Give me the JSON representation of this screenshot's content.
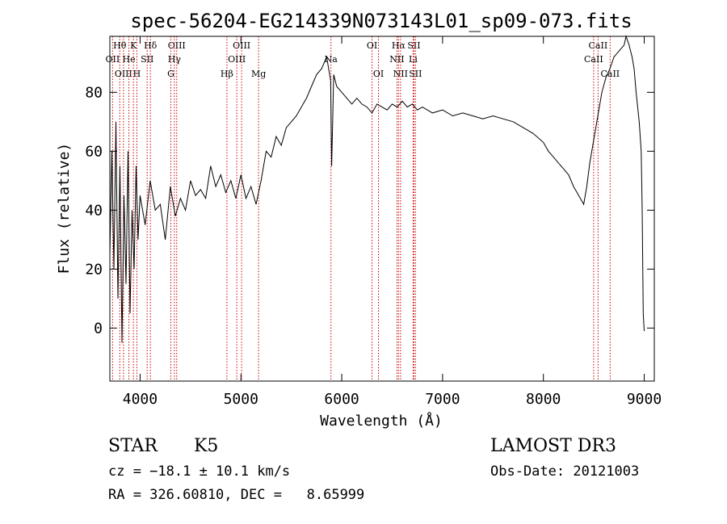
{
  "chart_data": {
    "type": "line",
    "title": "spec-56204-EG214339N073143L01_sp09-073.fits",
    "xlabel": "Wavelength (Å)",
    "ylabel": "Flux (relative)",
    "xlim": [
      3700,
      9100
    ],
    "ylim": [
      -18,
      99
    ],
    "x_ticks": [
      4000,
      5000,
      6000,
      7000,
      8000,
      9000
    ],
    "y_ticks": [
      0,
      20,
      40,
      60,
      80
    ],
    "grid": false,
    "line_color": "#000000",
    "marker_color": "#cc0000",
    "series": [
      {
        "x": [
          3700,
          3720,
          3740,
          3760,
          3780,
          3800,
          3820,
          3840,
          3860,
          3880,
          3900,
          3920,
          3940,
          3960,
          3980,
          4000,
          4050,
          4100,
          4150,
          4200,
          4250,
          4300,
          4350,
          4400,
          4450,
          4500,
          4550,
          4600,
          4650,
          4700,
          4750,
          4800,
          4850,
          4900,
          4950,
          5000,
          5050,
          5100,
          5150,
          5200,
          5250,
          5300,
          5350,
          5400,
          5450,
          5500,
          5550,
          5600,
          5650,
          5700,
          5750,
          5800,
          5850,
          5890,
          5900,
          5920,
          5950,
          6000,
          6050,
          6100,
          6150,
          6200,
          6250,
          6300,
          6350,
          6400,
          6450,
          6500,
          6550,
          6600,
          6650,
          6700,
          6750,
          6800,
          6900,
          7000,
          7100,
          7200,
          7300,
          7400,
          7500,
          7600,
          7700,
          7800,
          7900,
          8000,
          8050,
          8100,
          8150,
          8200,
          8250,
          8300,
          8350,
          8400,
          8430,
          8460,
          8500,
          8540,
          8580,
          8620,
          8660,
          8700,
          8750,
          8800,
          8820,
          8850,
          8880,
          8900,
          8920,
          8950,
          8970,
          8980,
          8990,
          9000
        ],
        "y": [
          25,
          60,
          20,
          70,
          10,
          55,
          -5,
          45,
          15,
          60,
          5,
          40,
          20,
          55,
          30,
          45,
          35,
          50,
          40,
          42,
          30,
          48,
          38,
          44,
          40,
          50,
          45,
          47,
          44,
          55,
          48,
          52,
          46,
          50,
          44,
          52,
          44,
          48,
          42,
          50,
          60,
          58,
          65,
          62,
          68,
          70,
          72,
          75,
          78,
          82,
          86,
          88,
          92,
          84,
          55,
          86,
          82,
          80,
          78,
          76,
          78,
          76,
          75,
          73,
          76,
          75,
          74,
          76,
          75,
          77,
          75,
          76,
          74,
          75,
          73,
          74,
          72,
          73,
          72,
          71,
          72,
          71,
          70,
          68,
          66,
          63,
          60,
          58,
          56,
          54,
          52,
          48,
          45,
          42,
          48,
          56,
          64,
          72,
          80,
          85,
          88,
          92,
          94,
          96,
          99,
          96,
          92,
          88,
          80,
          70,
          60,
          40,
          5,
          -1
        ]
      }
    ],
    "line_markers": [
      {
        "label": "Hθ",
        "x": 3798,
        "row": 0
      },
      {
        "label": "K",
        "x": 3934,
        "row": 0
      },
      {
        "label": "Hδ",
        "x": 4102,
        "row": 0
      },
      {
        "label": "OIII",
        "x": 4363,
        "row": 0
      },
      {
        "label": "OIII",
        "x": 5007,
        "row": 0
      },
      {
        "label": "OI",
        "x": 6300,
        "row": 0
      },
      {
        "label": "Hα",
        "x": 6563,
        "row": 0
      },
      {
        "label": "SII",
        "x": 6716,
        "row": 0
      },
      {
        "label": "CaII",
        "x": 8542,
        "row": 0
      },
      {
        "label": "OII",
        "x": 3727,
        "row": 1
      },
      {
        "label": "He",
        "x": 3889,
        "row": 1
      },
      {
        "label": "SII",
        "x": 4070,
        "row": 1
      },
      {
        "label": "Hγ",
        "x": 4340,
        "row": 1
      },
      {
        "label": "OIII",
        "x": 4959,
        "row": 1
      },
      {
        "label": "Na",
        "x": 5893,
        "row": 1
      },
      {
        "label": "NII",
        "x": 6548,
        "row": 1
      },
      {
        "label": "Li",
        "x": 6708,
        "row": 1
      },
      {
        "label": "CaII",
        "x": 8498,
        "row": 1
      },
      {
        "label": "OIII",
        "x": 3835,
        "row": 2
      },
      {
        "label": "H",
        "x": 3968,
        "row": 2
      },
      {
        "label": "G",
        "x": 4305,
        "row": 2
      },
      {
        "label": "Hβ",
        "x": 4861,
        "row": 2
      },
      {
        "label": "Mg",
        "x": 5175,
        "row": 2
      },
      {
        "label": "OI",
        "x": 6364,
        "row": 2
      },
      {
        "label": "NII",
        "x": 6583,
        "row": 2
      },
      {
        "label": "SII",
        "x": 6731,
        "row": 2
      },
      {
        "label": "CaII",
        "x": 8662,
        "row": 2
      }
    ]
  },
  "info": {
    "class_label": "STAR",
    "subclass_label": "K5",
    "survey": "LAMOST DR3",
    "redshift_line": "cz = −18.1 ± 10.1 km/s",
    "obs_date_line": "Obs-Date: 20121003",
    "coords_line": "RA = 326.60810, DEC =   8.65999"
  }
}
